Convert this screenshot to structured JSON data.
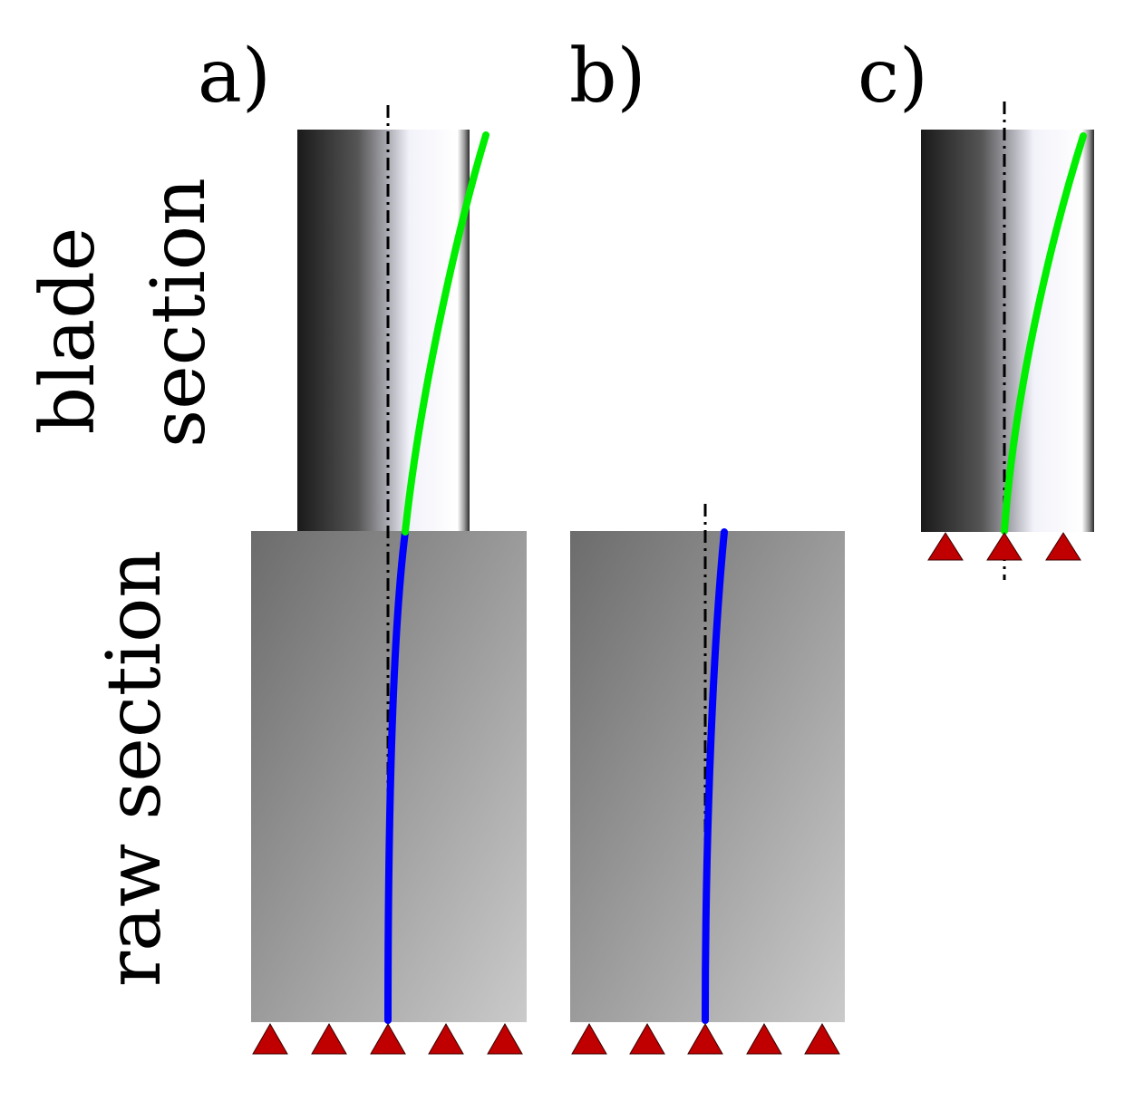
{
  "labels": {
    "panel_a": "a)",
    "panel_b": "b)",
    "panel_c": "c)",
    "blade_line1": "blade",
    "blade_line2": "section",
    "raw_section": "raw section"
  },
  "colors": {
    "blade_curve": "#00ee00",
    "raw_curve": "#0000ff",
    "support": "#c00000",
    "axis": "#000000"
  },
  "panels": [
    {
      "id": "a",
      "has_blade_section": true,
      "has_raw_section": true,
      "support_count": 5
    },
    {
      "id": "b",
      "has_blade_section": false,
      "has_raw_section": true,
      "support_count": 5
    },
    {
      "id": "c",
      "has_blade_section": true,
      "has_raw_section": false,
      "support_count": 3
    }
  ]
}
